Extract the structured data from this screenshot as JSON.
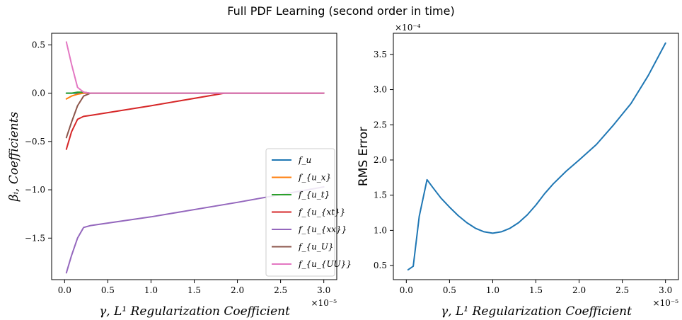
{
  "title": "Full PDF Learning (second order in time)",
  "chart_data": [
    {
      "type": "line",
      "xlabel": "γ, L¹ Regularization Coefficient",
      "ylabel": "βᵢ, Coefficients",
      "x_multiplier": "×10⁻⁵",
      "xlim": [
        -0.15,
        3.15
      ],
      "ylim": [
        -1.93,
        0.62
      ],
      "xticks": [
        "0.0",
        "0.5",
        "1.0",
        "1.5",
        "2.0",
        "2.5",
        "3.0"
      ],
      "yticks": [
        "0.5",
        "0.0",
        "−0.5",
        "−1.0",
        "−1.5"
      ],
      "ytick_values": [
        0.5,
        0.0,
        -0.5,
        -1.0,
        -1.5
      ],
      "legend_position": "lower-right",
      "series": [
        {
          "name": "f_u",
          "color": "#1f77b4",
          "x": [
            0.02,
            0.08,
            0.15,
            0.22,
            0.3,
            3.0
          ],
          "y": [
            0.0,
            0.0,
            0.0,
            0.0,
            0.0,
            0.0
          ]
        },
        {
          "name": "f_{u_x}",
          "color": "#ff7f0e",
          "x": [
            0.02,
            0.08,
            0.15,
            0.22,
            0.3,
            3.0
          ],
          "y": [
            -0.06,
            -0.03,
            -0.01,
            0.0,
            0.0,
            0.0
          ]
        },
        {
          "name": "f_{u_t}",
          "color": "#2ca02c",
          "x": [
            0.02,
            0.08,
            0.15,
            0.22,
            0.3,
            3.0
          ],
          "y": [
            0.0,
            0.0,
            0.01,
            0.01,
            0.0,
            0.0
          ]
        },
        {
          "name": "f_{u_{xt}}",
          "color": "#d62728",
          "x": [
            0.02,
            0.08,
            0.15,
            0.22,
            0.3,
            1.0,
            1.85,
            3.0
          ],
          "y": [
            -0.58,
            -0.4,
            -0.27,
            -0.24,
            -0.23,
            -0.13,
            0.0,
            0.0
          ]
        },
        {
          "name": "f_{u_{xx}}",
          "color": "#9467bd",
          "x": [
            0.02,
            0.08,
            0.15,
            0.22,
            0.3,
            1.0,
            2.0,
            3.0
          ],
          "y": [
            -1.86,
            -1.68,
            -1.5,
            -1.39,
            -1.37,
            -1.28,
            -1.13,
            -0.97
          ]
        },
        {
          "name": "f_{u_U}",
          "color": "#8c564b",
          "x": [
            0.02,
            0.08,
            0.15,
            0.22,
            0.3,
            3.0
          ],
          "y": [
            -0.46,
            -0.3,
            -0.13,
            -0.03,
            0.0,
            0.0
          ]
        },
        {
          "name": "f_{u_{UU}}",
          "color": "#e377c2",
          "x": [
            0.02,
            0.08,
            0.15,
            0.22,
            0.3,
            3.0
          ],
          "y": [
            0.53,
            0.3,
            0.06,
            0.01,
            0.0,
            0.0
          ]
        }
      ]
    },
    {
      "type": "line",
      "xlabel": "γ, L¹ Regularization Coefficient",
      "ylabel": "RMS Error",
      "x_multiplier": "×10⁻⁵",
      "y_multiplier": "×10⁻⁴",
      "xlim": [
        -0.15,
        3.15
      ],
      "ylim": [
        0.3,
        3.8
      ],
      "xticks": [
        "0.0",
        "0.5",
        "1.0",
        "1.5",
        "2.0",
        "2.5",
        "3.0"
      ],
      "yticks": [
        "3.5",
        "3.0",
        "2.5",
        "2.0",
        "1.5",
        "1.0",
        "0.5"
      ],
      "ytick_values": [
        3.5,
        3.0,
        2.5,
        2.0,
        1.5,
        1.0,
        0.5
      ],
      "series": [
        {
          "color": "#1f77b4",
          "x": [
            0.02,
            0.08,
            0.15,
            0.24,
            0.3,
            0.4,
            0.5,
            0.6,
            0.7,
            0.8,
            0.9,
            1.0,
            1.1,
            1.2,
            1.3,
            1.4,
            1.5,
            1.6,
            1.7,
            1.85,
            2.0,
            2.2,
            2.4,
            2.6,
            2.8,
            3.0
          ],
          "y": [
            0.44,
            0.49,
            1.2,
            1.72,
            1.62,
            1.46,
            1.33,
            1.21,
            1.11,
            1.03,
            0.98,
            0.96,
            0.98,
            1.03,
            1.11,
            1.22,
            1.36,
            1.52,
            1.66,
            1.84,
            2.0,
            2.22,
            2.5,
            2.8,
            3.2,
            3.66
          ]
        }
      ]
    }
  ]
}
